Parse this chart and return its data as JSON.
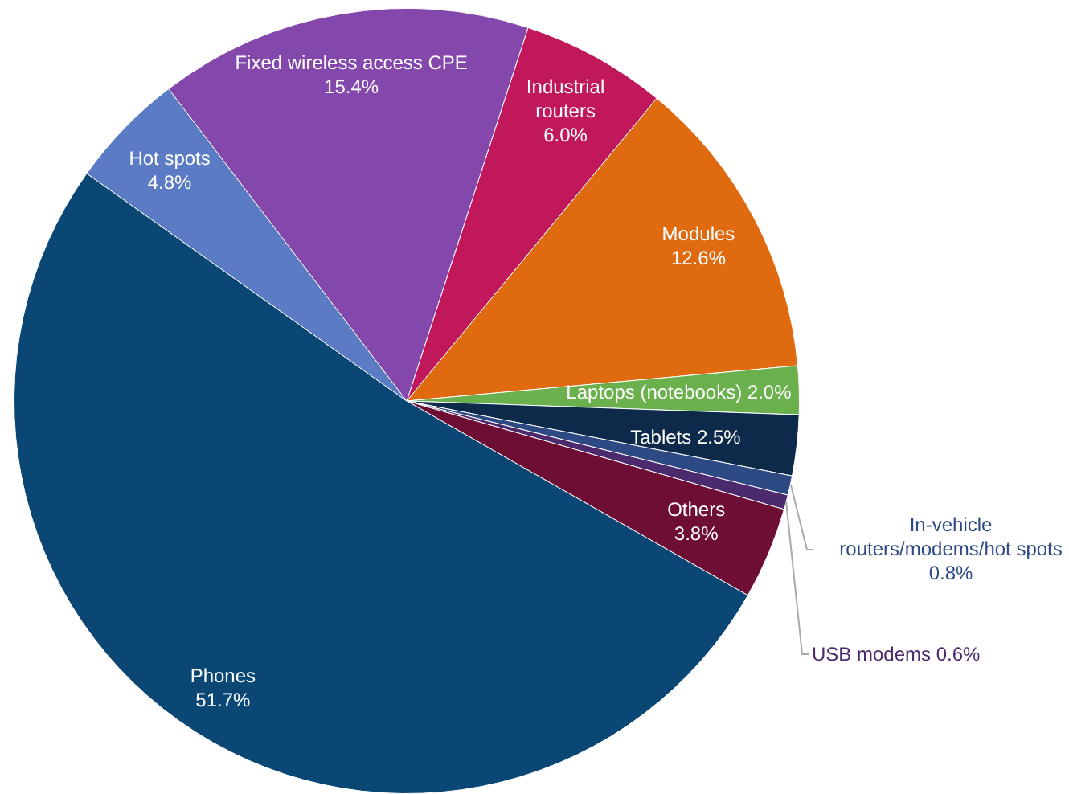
{
  "chart_data": {
    "type": "pie",
    "categories": [
      "Industrial routers",
      "Modules",
      "Laptops (notebooks)",
      "Tablets",
      "In-vehicle routers/modems/hot spots",
      "USB modems",
      "Others",
      "Phones",
      "Hot spots",
      "Fixed wireless access CPE"
    ],
    "values": [
      6.0,
      12.6,
      2.0,
      2.5,
      0.8,
      0.6,
      3.8,
      51.7,
      4.8,
      15.4
    ],
    "value_labels": [
      "6.0%",
      "12.6%",
      "2.0%",
      "2.5%",
      "0.8%",
      "0.6%",
      "3.8%",
      "51.7%",
      "4.8%",
      "15.4%"
    ],
    "colors": [
      "#c0185a",
      "#e06a10",
      "#6ab04c",
      "#0d2a4a",
      "#2e4a85",
      "#4b2a6e",
      "#6e0e35",
      "#0a4775",
      "#5b7cc4",
      "#8447ab"
    ],
    "legend": false
  }
}
